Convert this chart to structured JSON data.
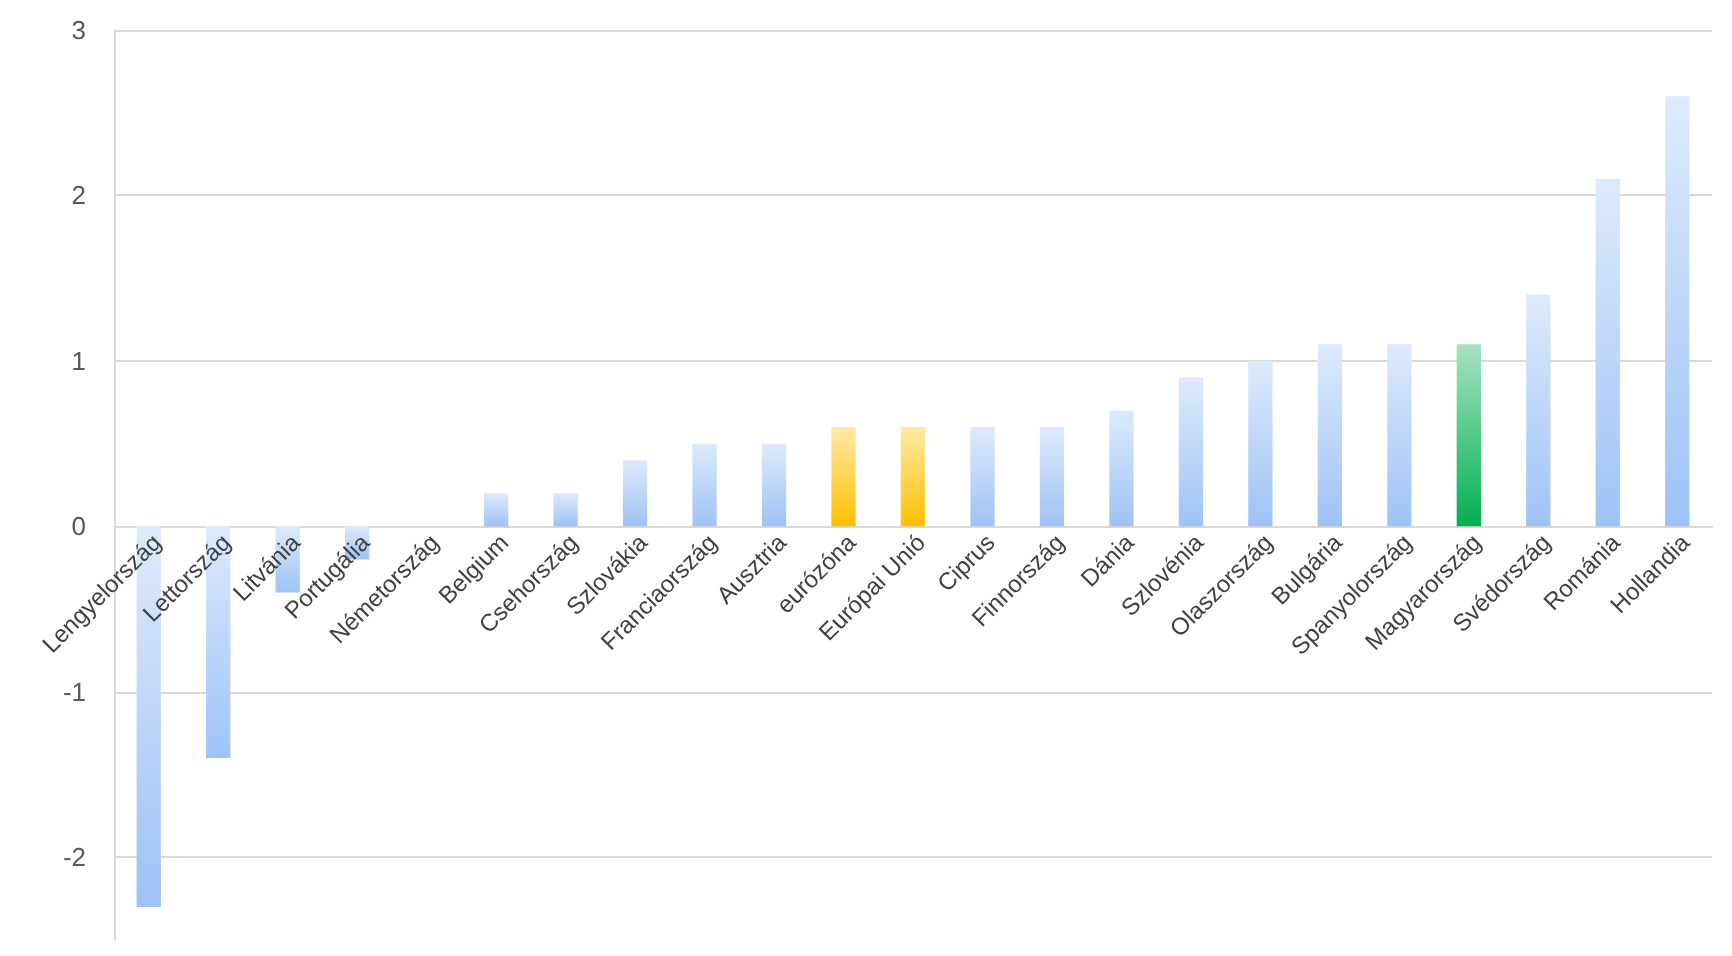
{
  "chart_data": {
    "type": "bar",
    "categories": [
      "Lengyelország",
      "Lettország",
      "Litvánia",
      "Portugália",
      "Németország",
      "Belgium",
      "Csehország",
      "Szlovákia",
      "Franciaország",
      "Ausztria",
      "eurózóna",
      "Európai Unió",
      "Ciprus",
      "Finnország",
      "Dánia",
      "Szlovénia",
      "Olaszország",
      "Bulgária",
      "Spanyolország",
      "Magyarország",
      "Svédország",
      "Románia",
      "Hollandia"
    ],
    "values": [
      -2.3,
      -1.4,
      -0.4,
      -0.2,
      0,
      0.2,
      0.2,
      0.4,
      0.5,
      0.5,
      0.6,
      0.6,
      0.6,
      0.6,
      0.7,
      0.9,
      1.0,
      1.1,
      1.1,
      1.1,
      1.4,
      2.1,
      2.6
    ],
    "colors": [
      "#9dc3f6",
      "#9dc3f6",
      "#9dc3f6",
      "#9dc3f6",
      "#9dc3f6",
      "#9dc3f6",
      "#9dc3f6",
      "#9dc3f6",
      "#9dc3f6",
      "#9dc3f6",
      "#ffc000",
      "#ffc000",
      "#9dc3f6",
      "#9dc3f6",
      "#9dc3f6",
      "#9dc3f6",
      "#9dc3f6",
      "#9dc3f6",
      "#9dc3f6",
      "#00b050",
      "#9dc3f6",
      "#9dc3f6",
      "#9dc3f6"
    ],
    "ylim": [
      -2.5,
      3
    ],
    "yticks": [
      -2,
      -1,
      0,
      1,
      2,
      3
    ],
    "grid": "y"
  }
}
